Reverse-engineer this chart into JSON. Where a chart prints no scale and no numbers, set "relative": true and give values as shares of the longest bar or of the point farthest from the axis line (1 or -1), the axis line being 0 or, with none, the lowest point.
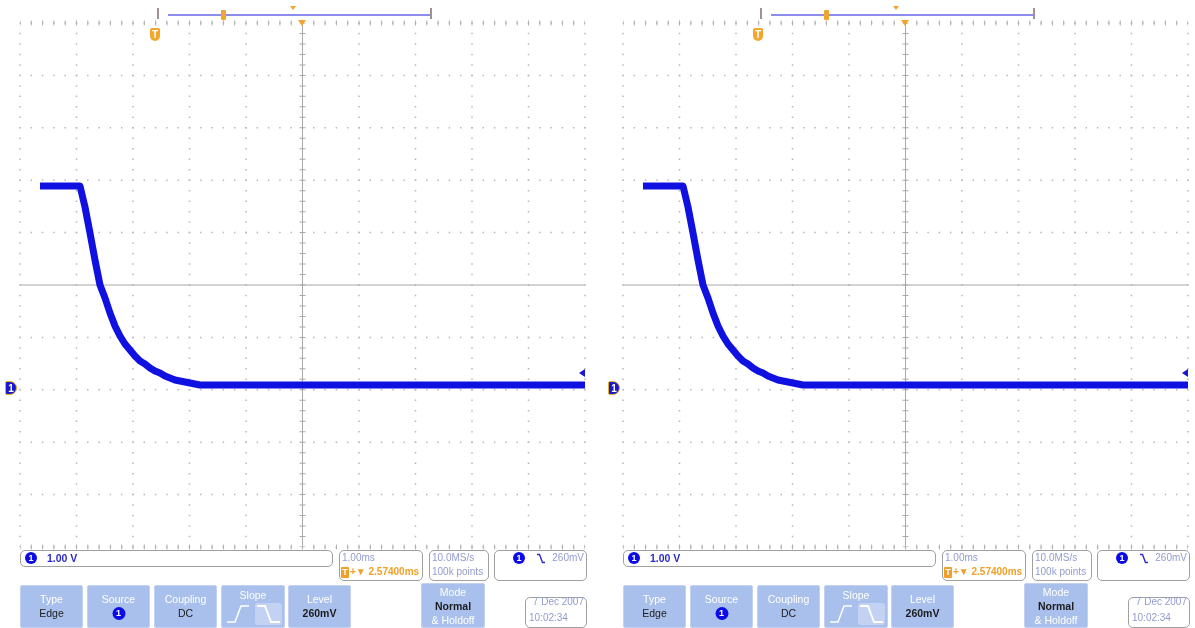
{
  "chart_data": [
    {
      "type": "line",
      "relative": true,
      "grid": true,
      "categories": [
        null,
        null,
        null,
        null,
        null,
        null,
        null,
        null,
        null,
        null,
        null,
        null,
        null,
        null,
        null,
        null,
        null,
        null,
        null,
        null,
        null,
        null,
        null,
        null,
        null,
        null,
        null,
        null,
        null,
        null,
        null,
        null,
        null,
        null,
        null,
        null,
        null,
        null,
        null,
        null,
        null,
        null,
        null,
        null,
        null,
        null,
        null,
        null,
        null,
        null,
        null,
        null,
        null,
        null,
        null,
        null,
        null,
        null,
        null,
        null,
        null,
        null,
        null,
        null,
        null,
        null,
        null,
        null,
        null,
        null,
        null,
        null,
        null,
        null,
        null,
        null,
        null,
        null,
        null,
        null,
        null,
        null,
        null,
        null,
        null,
        null,
        null,
        null,
        null,
        null,
        null,
        null,
        null,
        null,
        null,
        null,
        null,
        null,
        null,
        null,
        null,
        null,
        null,
        null,
        null,
        null,
        null,
        null,
        null,
        null,
        null,
        null,
        null,
        null
      ],
      "series": [
        {
          "color": "#1010e0",
          "values": [
            null,
            null,
            null,
            null,
            0.99,
            0.99,
            0.99,
            0.99,
            0.99,
            0.99,
            0.99,
            0.99,
            0.99,
            0.78,
            0.52,
            0.25,
            0,
            -0.13,
            -0.28,
            -0.41,
            -0.51,
            -0.59,
            -0.65,
            -0.71,
            -0.76,
            -0.79,
            -0.83,
            -0.86,
            -0.88,
            -0.91,
            -0.93,
            -0.95,
            -0.96,
            -0.97,
            -0.98,
            -0.99,
            -1,
            -1,
            -1,
            -1,
            -1,
            -1,
            -1,
            -1,
            -1,
            -1,
            -1,
            -1,
            -1,
            -1,
            -1,
            -1,
            -1,
            -1,
            -1,
            -1,
            -1,
            -1,
            -1,
            -1,
            -1,
            -1,
            -1,
            -1,
            -1,
            -1,
            -1,
            -1,
            -1,
            -1,
            -1,
            -1,
            -1,
            -1,
            -1,
            -1,
            -1,
            -1,
            -1,
            -1,
            -1,
            -1,
            -1,
            -1,
            -1,
            -1,
            -1,
            -1,
            -1,
            -1,
            -1,
            -1,
            -1,
            -1,
            -1,
            -1,
            -1,
            -1,
            -1,
            -1,
            -1,
            -1,
            -1,
            -1,
            -1,
            -1,
            -1,
            -1,
            -1,
            -1,
            -1,
            -1,
            -1,
            -1
          ]
        }
      ],
      "annotations": [
        "T",
        "1",
        "1",
        "1.00 V",
        "1.00ms",
        "T",
        "+▼ 2.57400ms",
        "10.0MS/s",
        "100k points",
        "1",
        "260mV",
        "Type",
        "Edge",
        "Source",
        "1",
        "Coupling",
        "DC",
        "Slope",
        "Level",
        "260mV",
        "Mode",
        "Normal",
        "& Holdoff",
        "7 Dec 2007",
        "10:02:34"
      ]
    },
    {
      "type": "line",
      "relative": true,
      "grid": true,
      "categories": [
        null,
        null,
        null,
        null,
        null,
        null,
        null,
        null,
        null,
        null,
        null,
        null,
        null,
        null,
        null,
        null,
        null,
        null,
        null,
        null,
        null,
        null,
        null,
        null,
        null,
        null,
        null,
        null,
        null,
        null,
        null,
        null,
        null,
        null,
        null,
        null,
        null,
        null,
        null,
        null,
        null,
        null,
        null,
        null,
        null,
        null,
        null,
        null,
        null,
        null,
        null,
        null,
        null,
        null,
        null,
        null,
        null,
        null,
        null,
        null,
        null,
        null,
        null,
        null,
        null,
        null,
        null,
        null,
        null,
        null,
        null,
        null,
        null,
        null,
        null,
        null,
        null,
        null,
        null,
        null,
        null,
        null,
        null,
        null,
        null,
        null,
        null,
        null,
        null,
        null,
        null,
        null,
        null,
        null,
        null,
        null,
        null,
        null,
        null,
        null,
        null,
        null,
        null,
        null,
        null,
        null,
        null,
        null,
        null,
        null,
        null,
        null,
        null,
        null
      ],
      "series": [
        {
          "color": "#1010e0",
          "values": [
            null,
            null,
            null,
            null,
            0.99,
            0.99,
            0.99,
            0.99,
            0.99,
            0.99,
            0.99,
            0.99,
            0.99,
            0.78,
            0.52,
            0.25,
            0,
            -0.13,
            -0.28,
            -0.41,
            -0.51,
            -0.59,
            -0.65,
            -0.71,
            -0.76,
            -0.79,
            -0.83,
            -0.86,
            -0.88,
            -0.91,
            -0.93,
            -0.95,
            -0.96,
            -0.97,
            -0.98,
            -0.99,
            -1,
            -1,
            -1,
            -1,
            -1,
            -1,
            -1,
            -1,
            -1,
            -1,
            -1,
            -1,
            -1,
            -1,
            -1,
            -1,
            -1,
            -1,
            -1,
            -1,
            -1,
            -1,
            -1,
            -1,
            -1,
            -1,
            -1,
            -1,
            -1,
            -1,
            -1,
            -1,
            -1,
            -1,
            -1,
            -1,
            -1,
            -1,
            -1,
            -1,
            -1,
            -1,
            -1,
            -1,
            -1,
            -1,
            -1,
            -1,
            -1,
            -1,
            -1,
            -1,
            -1,
            -1,
            -1,
            -1,
            -1,
            -1,
            -1,
            -1,
            -1,
            -1,
            -1,
            -1,
            -1,
            -1,
            -1,
            -1,
            -1,
            -1,
            -1,
            -1,
            -1,
            -1,
            -1,
            -1,
            -1,
            -1
          ]
        }
      ],
      "annotations": [
        "T",
        "1",
        "1",
        "1.00 V",
        "1.00ms",
        "T",
        "+▼ 2.57400ms",
        "10.0MS/s",
        "100k points",
        "1",
        "260mV",
        "Type",
        "Edge",
        "Source",
        "1",
        "Coupling",
        "DC",
        "Slope",
        "Level",
        "260mV",
        "Mode",
        "Normal",
        "& Holdoff",
        "7 Dec 2007",
        "10:02:34"
      ]
    }
  ]
}
